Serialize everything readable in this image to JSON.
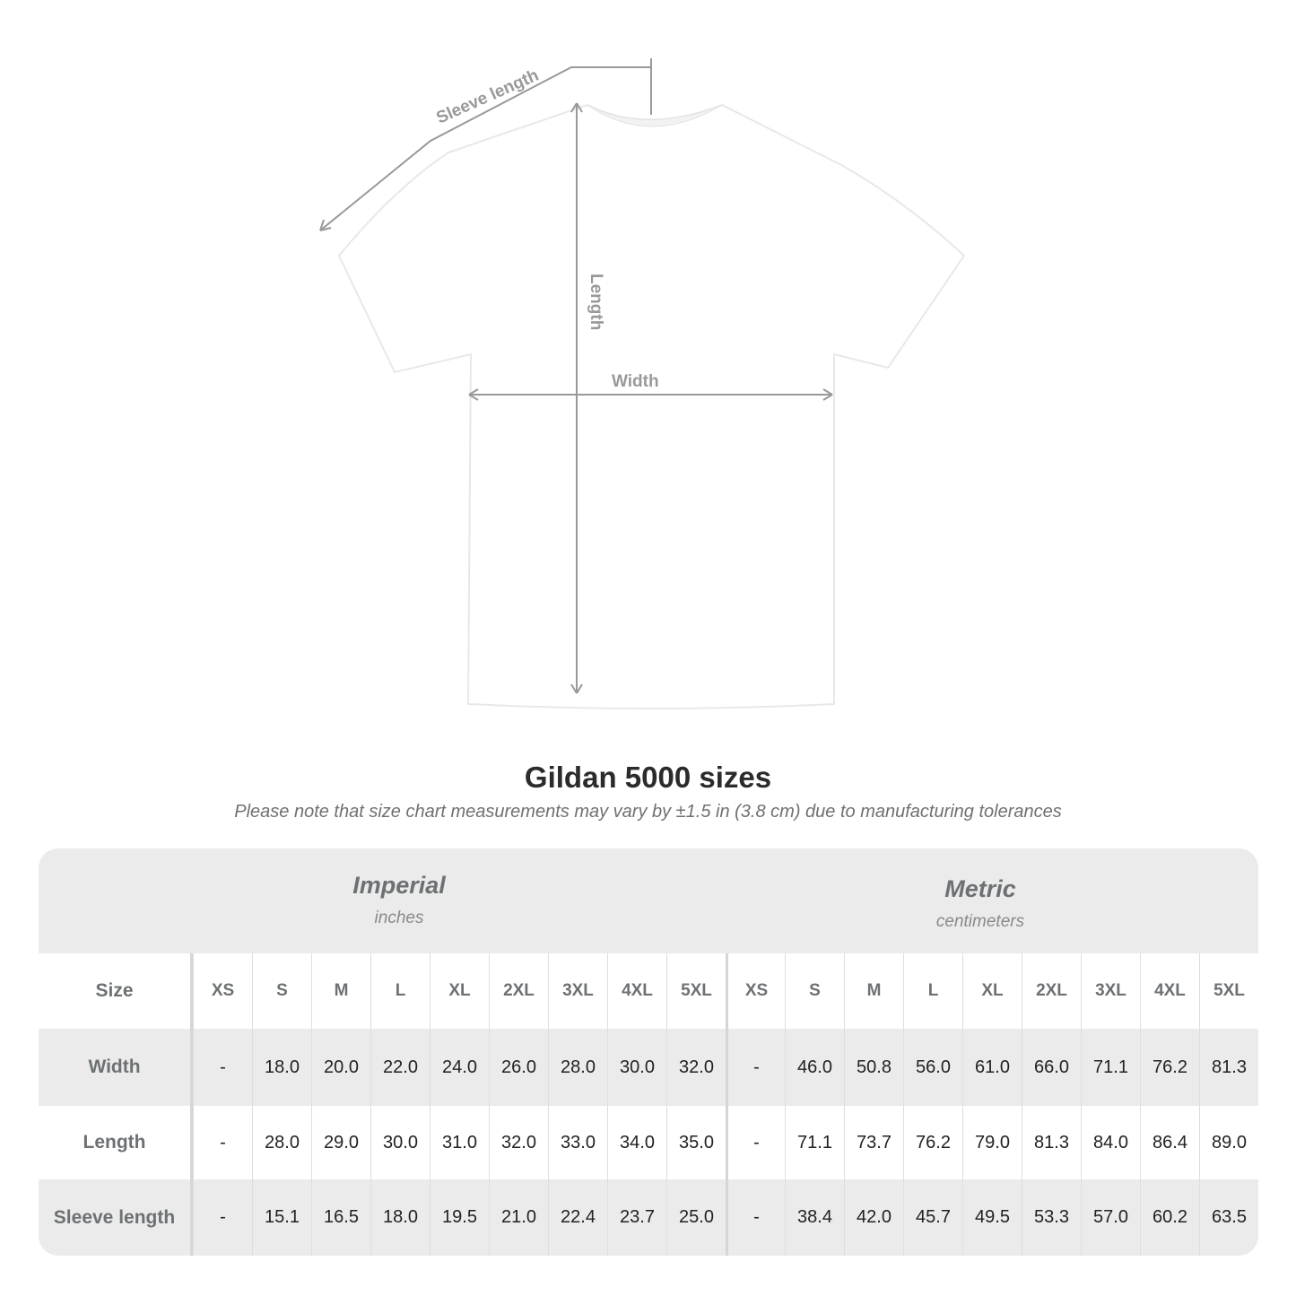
{
  "diagram": {
    "labels": {
      "sleeve": "Sleeve length",
      "length": "Length",
      "width": "Width"
    },
    "colors": {
      "arrow": "#999999",
      "shirt": "#ffffff",
      "shirt_outline": "#e6e6e6"
    }
  },
  "title": "Gildan 5000 sizes",
  "subtitle": "Please note that size chart measurements may vary by ±1.5 in (3.8 cm) due to manufacturing tolerances",
  "table": {
    "imperial": {
      "name": "Imperial",
      "unit": "inches"
    },
    "metric": {
      "name": "Metric",
      "unit": "centimeters"
    },
    "size_label": "Size",
    "sizes": [
      "XS",
      "S",
      "M",
      "L",
      "XL",
      "2XL",
      "3XL",
      "4XL",
      "5XL"
    ],
    "rows": [
      {
        "label": "Width",
        "imperial": [
          "-",
          "18.0",
          "20.0",
          "22.0",
          "24.0",
          "26.0",
          "28.0",
          "30.0",
          "32.0"
        ],
        "metric": [
          "-",
          "46.0",
          "50.8",
          "56.0",
          "61.0",
          "66.0",
          "71.1",
          "76.2",
          "81.3"
        ]
      },
      {
        "label": "Length",
        "imperial": [
          "-",
          "28.0",
          "29.0",
          "30.0",
          "31.0",
          "32.0",
          "33.0",
          "34.0",
          "35.0"
        ],
        "metric": [
          "-",
          "71.1",
          "73.7",
          "76.2",
          "79.0",
          "81.3",
          "84.0",
          "86.4",
          "89.0"
        ]
      },
      {
        "label": "Sleeve length",
        "imperial": [
          "-",
          "15.1",
          "16.5",
          "18.0",
          "19.5",
          "21.0",
          "22.4",
          "23.7",
          "25.0"
        ],
        "metric": [
          "-",
          "38.4",
          "42.0",
          "45.7",
          "49.5",
          "53.3",
          "57.0",
          "60.2",
          "63.5"
        ]
      }
    ]
  }
}
